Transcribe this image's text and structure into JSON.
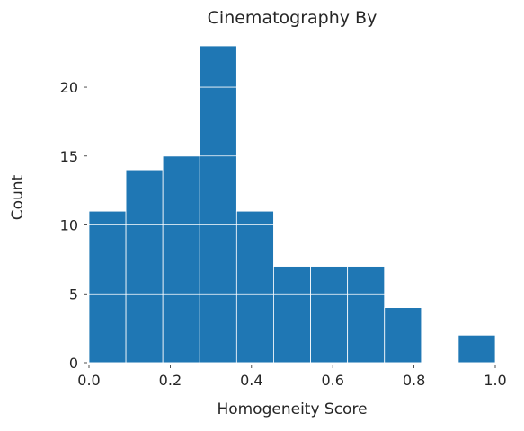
{
  "chart_data": {
    "type": "bar",
    "title": "Cinematography By",
    "xlabel": "Homogeneity Score",
    "ylabel": "Count",
    "bins": [
      {
        "x0": 0.0,
        "x1": 0.0909,
        "count": 11
      },
      {
        "x0": 0.0909,
        "x1": 0.1818,
        "count": 14
      },
      {
        "x0": 0.1818,
        "x1": 0.2727,
        "count": 15
      },
      {
        "x0": 0.2727,
        "x1": 0.3636,
        "count": 23
      },
      {
        "x0": 0.3636,
        "x1": 0.4545,
        "count": 11
      },
      {
        "x0": 0.4545,
        "x1": 0.5455,
        "count": 7
      },
      {
        "x0": 0.5455,
        "x1": 0.6364,
        "count": 7
      },
      {
        "x0": 0.6364,
        "x1": 0.7273,
        "count": 7
      },
      {
        "x0": 0.7273,
        "x1": 0.8182,
        "count": 4
      },
      {
        "x0": 0.8182,
        "x1": 0.9091,
        "count": 0
      },
      {
        "x0": 0.9091,
        "x1": 1.0,
        "count": 2
      }
    ],
    "xlim": [
      0.0,
      1.0
    ],
    "ylim": [
      0,
      23
    ],
    "xticks": [
      "0.0",
      "0.2",
      "0.4",
      "0.6",
      "0.8",
      "1.0"
    ],
    "yticks": [
      "0",
      "5",
      "10",
      "15",
      "20"
    ],
    "grid": true,
    "bar_color": "#1f77b4",
    "grid_color": "#ffffff"
  }
}
